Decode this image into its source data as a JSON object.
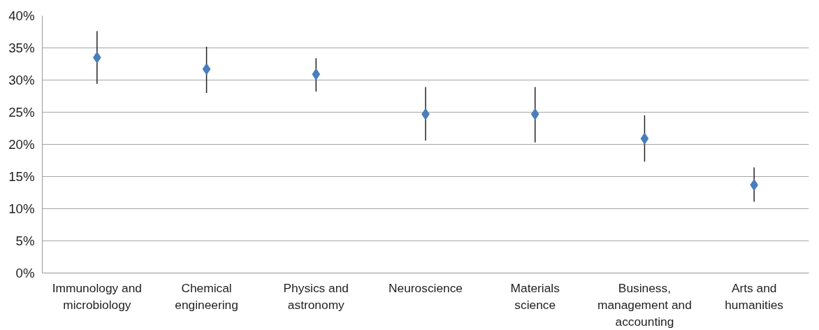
{
  "chart_data": {
    "type": "scatter",
    "categories": [
      "Immunology and microbiology",
      "Chemical engineering",
      "Physics and astronomy",
      "Neuroscience",
      "Materials science",
      "Business, management and accounting",
      "Arts and humanities"
    ],
    "series": [
      {
        "color": "#4a7ebb",
        "values": [
          33.5,
          31.7,
          30.9,
          24.7,
          24.7,
          20.9,
          13.7
        ],
        "errors": [
          [
            29.4,
            37.6
          ],
          [
            28.0,
            35.2
          ],
          [
            28.2,
            33.4
          ],
          [
            20.6,
            28.9
          ],
          [
            20.3,
            28.9
          ],
          [
            17.3,
            24.5
          ],
          [
            11.1,
            16.4
          ]
        ]
      }
    ],
    "ylim": [
      0,
      40
    ],
    "yticks": [
      {
        "value": 0,
        "label": "0%"
      },
      {
        "value": 5,
        "label": "5%"
      },
      {
        "value": 10,
        "label": "10%"
      },
      {
        "value": 15,
        "label": "15%"
      },
      {
        "value": 20,
        "label": "20%"
      },
      {
        "value": 25,
        "label": "25%"
      },
      {
        "value": 30,
        "label": "30%"
      },
      {
        "value": 35,
        "label": "35%"
      },
      {
        "value": 40,
        "label": "40%"
      }
    ],
    "grid": "y",
    "marker": "diamond"
  }
}
